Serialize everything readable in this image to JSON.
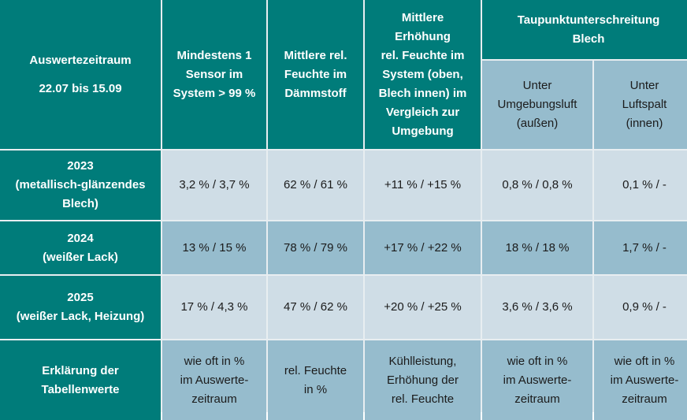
{
  "header": {
    "period_label": "Auswertezeitraum",
    "period_value": "22.07 bis 15.09",
    "col1": "Mindestens 1\nSensor im\nSystem > 99 %",
    "col2": "Mittlere rel.\nFeuchte im\nDämmstoff",
    "col3": "Mittlere\nErhöhung\nrel. Feuchte im\nSystem (oben,\nBlech innen) im\nVergleich zur\nUmgebung",
    "group": "Taupunktunterschreitung\nBlech",
    "col4": "Unter\nUmgebungsluft\n(außen)",
    "col5": "Unter\nLuftspalt\n(innen)"
  },
  "rows": [
    {
      "label": "2023\n(metallisch-glänzendes\nBlech)",
      "values": [
        "3,2 % / 3,7 %",
        "62 % / 61 %",
        "+11 % / +15 %",
        "0,8 % / 0,8 %",
        "0,1 % / -"
      ]
    },
    {
      "label": "2024\n(weißer Lack)",
      "values": [
        "13 % / 15 %",
        "78 % / 79 %",
        "+17 % / +22 %",
        "18 % / 18 %",
        "1,7 % / -"
      ]
    },
    {
      "label": "2025\n(weißer Lack, Heizung)",
      "values": [
        "17 % / 4,3 %",
        "47 % / 62 %",
        "+20 % / +25 %",
        "3,6 % / 3,6 %",
        "0,9 % / -"
      ]
    },
    {
      "label": "Erklärung der\nTabellenwerte",
      "values": [
        "wie oft in %\nim Auswerte-\nzeitraum",
        "rel. Feuchte\nin %",
        "Kühlleistung,\nErhöhung der\nrel. Feuchte",
        "wie oft in %\nim Auswerte-\nzeitraum",
        "wie oft in %\nim Auswerte-\nzeitraum"
      ]
    }
  ],
  "colors": {
    "header": "#007c7a",
    "light": "#cfdde6",
    "dark": "#96bccd"
  }
}
